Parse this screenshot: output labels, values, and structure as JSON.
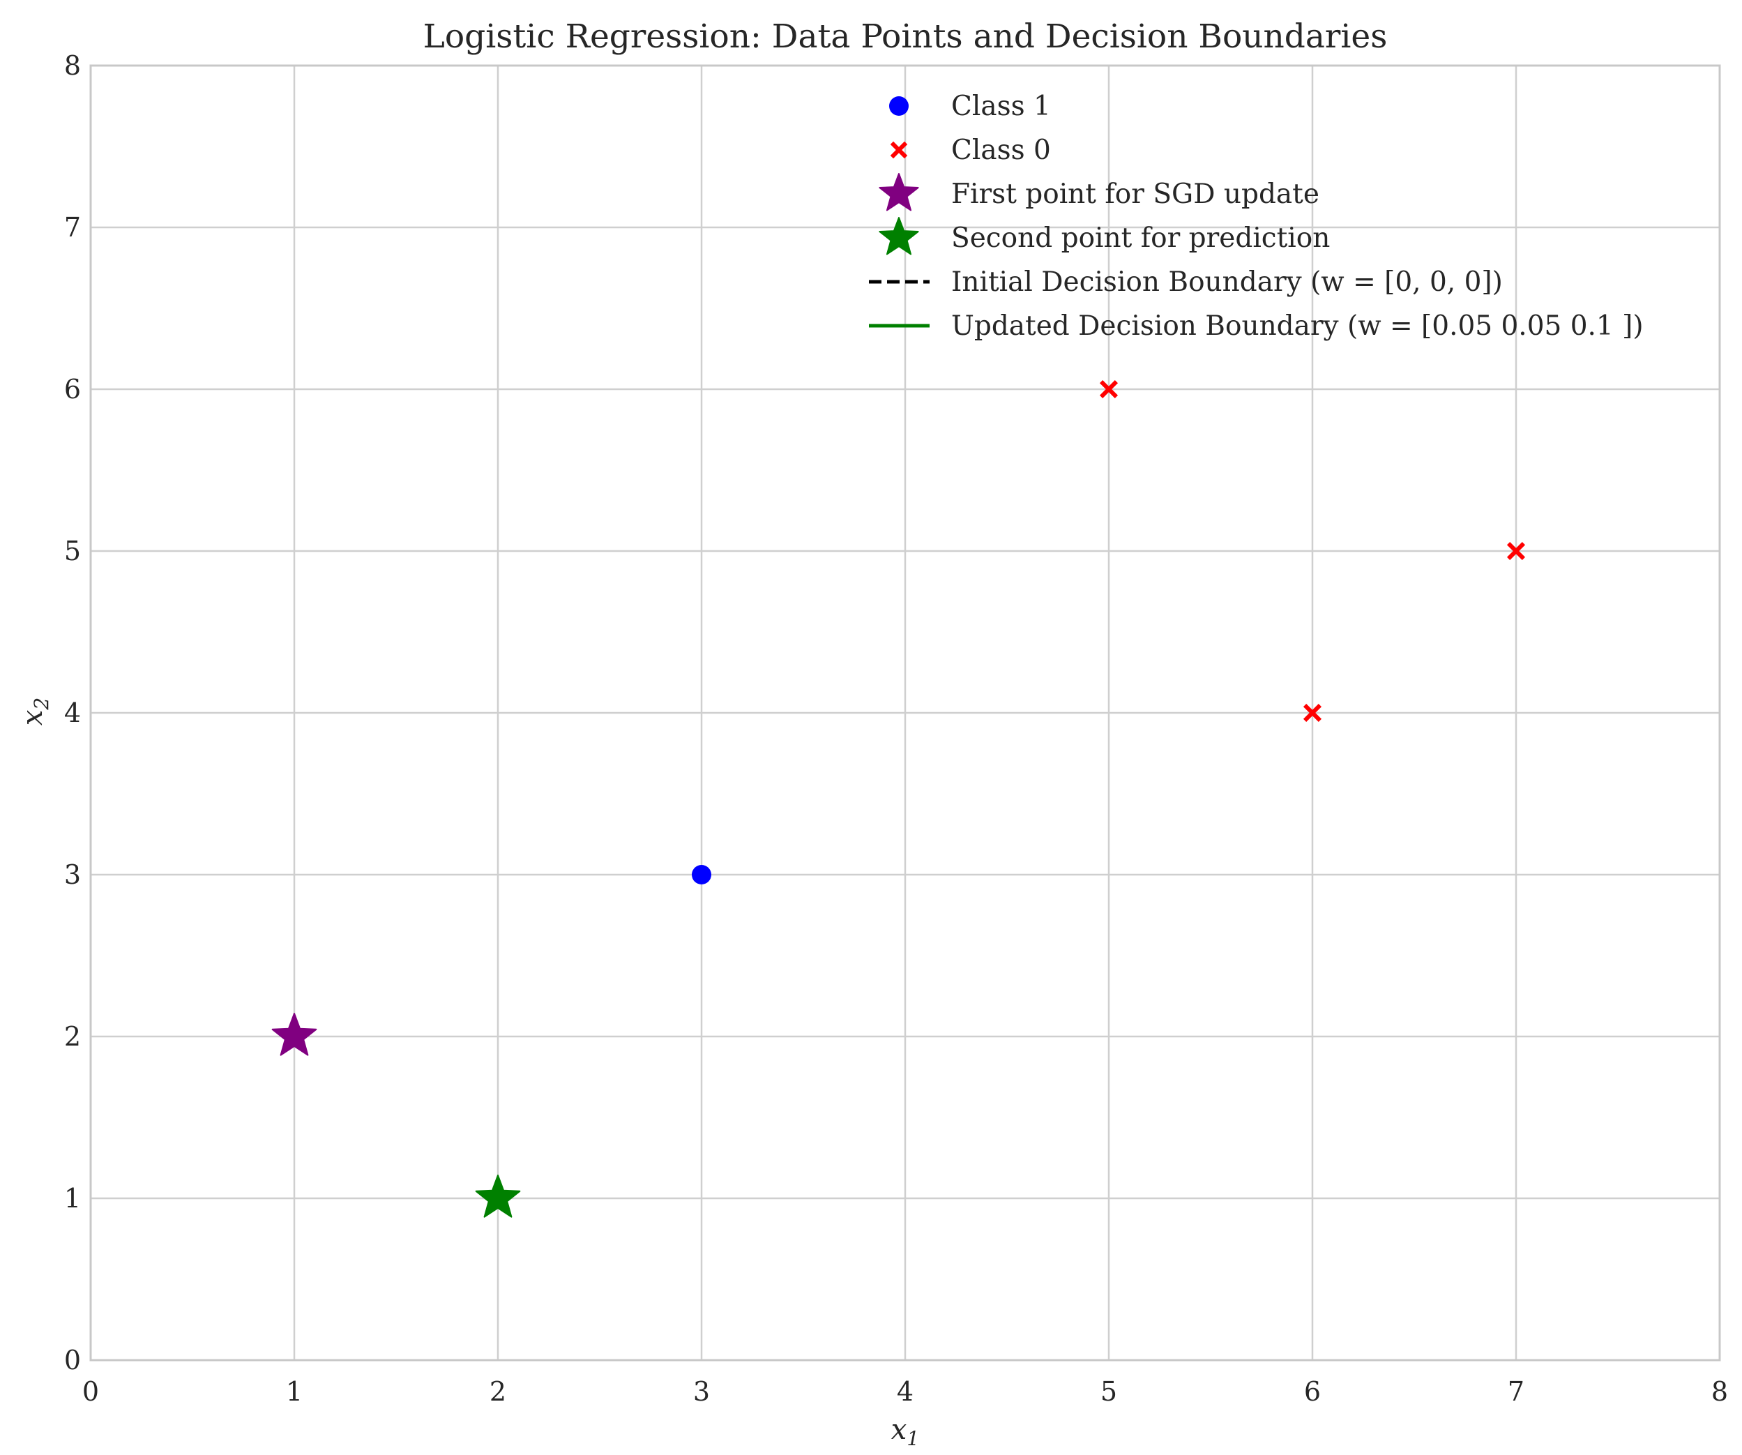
{
  "chart_data": {
    "type": "scatter",
    "title": "Logistic Regression: Data Points and Decision Boundaries",
    "xlabel": "x",
    "xlabel_sub": "1",
    "ylabel": "x",
    "ylabel_sub": "2",
    "xlim": [
      0,
      8
    ],
    "ylim": [
      0,
      8
    ],
    "xticks": [
      "0",
      "1",
      "2",
      "3",
      "4",
      "5",
      "6",
      "7",
      "8"
    ],
    "yticks": [
      "0",
      "1",
      "2",
      "3",
      "4",
      "5",
      "6",
      "7",
      "8"
    ],
    "grid": true,
    "legend_position": "upper-right",
    "series": [
      {
        "name": "Class 1",
        "marker": "circle",
        "color": "#0000ff",
        "points": [
          [
            3,
            3
          ]
        ]
      },
      {
        "name": "Class 0",
        "marker": "x",
        "color": "#ff0000",
        "points": [
          [
            5,
            6
          ],
          [
            6,
            4
          ],
          [
            7,
            5
          ]
        ]
      },
      {
        "name": "First point for SGD update",
        "marker": "star",
        "color": "#800080",
        "points": [
          [
            1,
            2
          ]
        ]
      },
      {
        "name": "Second point for prediction",
        "marker": "star",
        "color": "#008000",
        "points": [
          [
            2,
            1
          ]
        ]
      }
    ],
    "lines": [
      {
        "name": "Initial Decision Boundary (w = [0, 0, 0])",
        "style": "dashed",
        "color": "#000000"
      },
      {
        "name": "Updated Decision Boundary (w = [0.05 0.05 0.1 ])",
        "style": "solid",
        "color": "#008000"
      }
    ]
  }
}
